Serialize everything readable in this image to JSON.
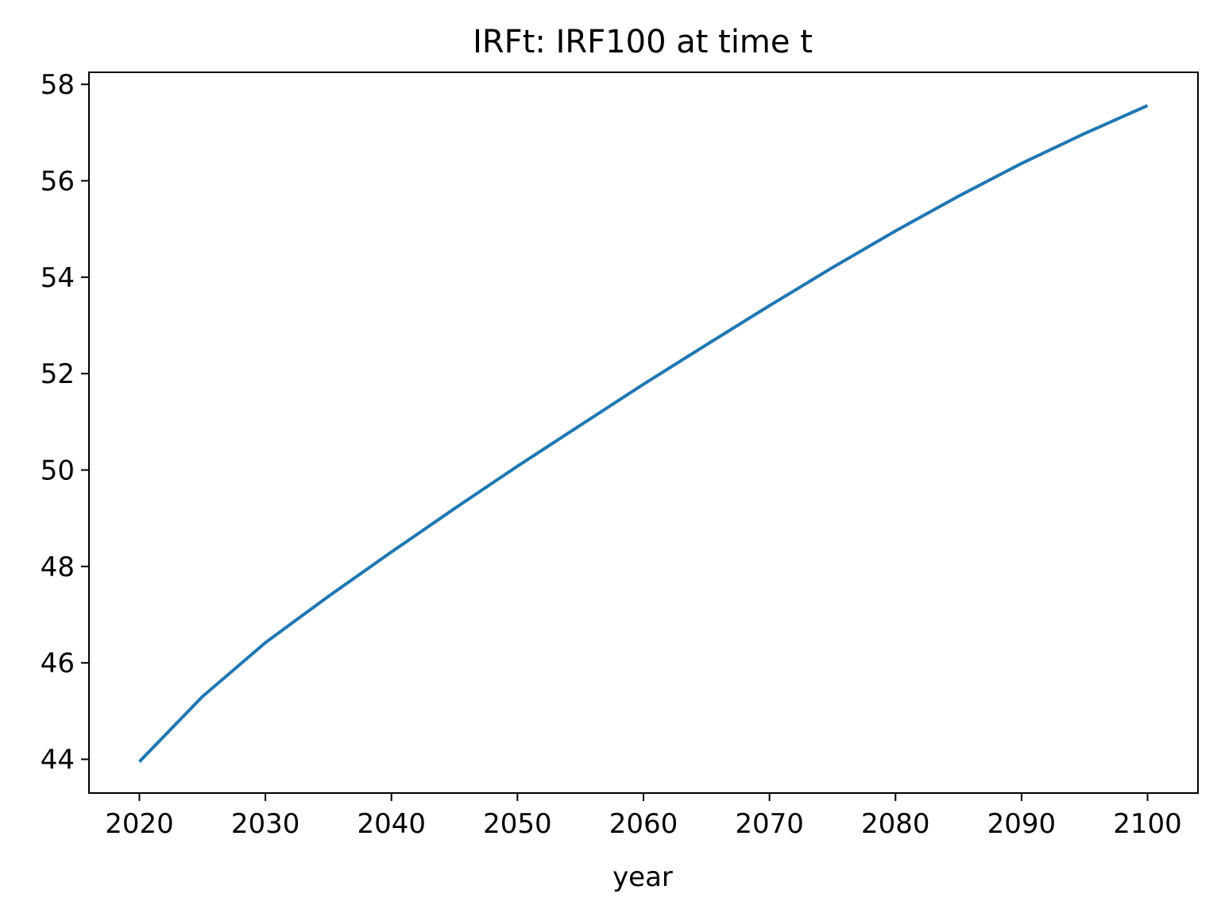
{
  "chart_data": {
    "type": "line",
    "title": "IRFt: IRF100 at time t",
    "xlabel": "year",
    "ylabel": "",
    "xlim": [
      2016,
      2104
    ],
    "ylim": [
      43.3,
      58.25
    ],
    "xticks": [
      2020,
      2030,
      2040,
      2050,
      2060,
      2070,
      2080,
      2090,
      2100
    ],
    "xtick_labels": [
      "2020",
      "2030",
      "2040",
      "2050",
      "2060",
      "2070",
      "2080",
      "2090",
      "2100"
    ],
    "yticks": [
      44,
      46,
      48,
      50,
      52,
      54,
      56,
      58
    ],
    "ytick_labels": [
      "44",
      "46",
      "48",
      "50",
      "52",
      "54",
      "56",
      "58"
    ],
    "grid": false,
    "legend": "none",
    "series": [
      {
        "color": "#1f77b4",
        "x": [
          2020,
          2025,
          2030,
          2035,
          2040,
          2045,
          2050,
          2055,
          2060,
          2065,
          2070,
          2075,
          2080,
          2085,
          2090,
          2095,
          2100
        ],
        "y": [
          43.95,
          45.3,
          46.42,
          47.38,
          48.3,
          49.2,
          50.08,
          50.93,
          51.78,
          52.6,
          53.41,
          54.2,
          54.96,
          55.68,
          56.36,
          56.98,
          57.56
        ]
      }
    ]
  }
}
